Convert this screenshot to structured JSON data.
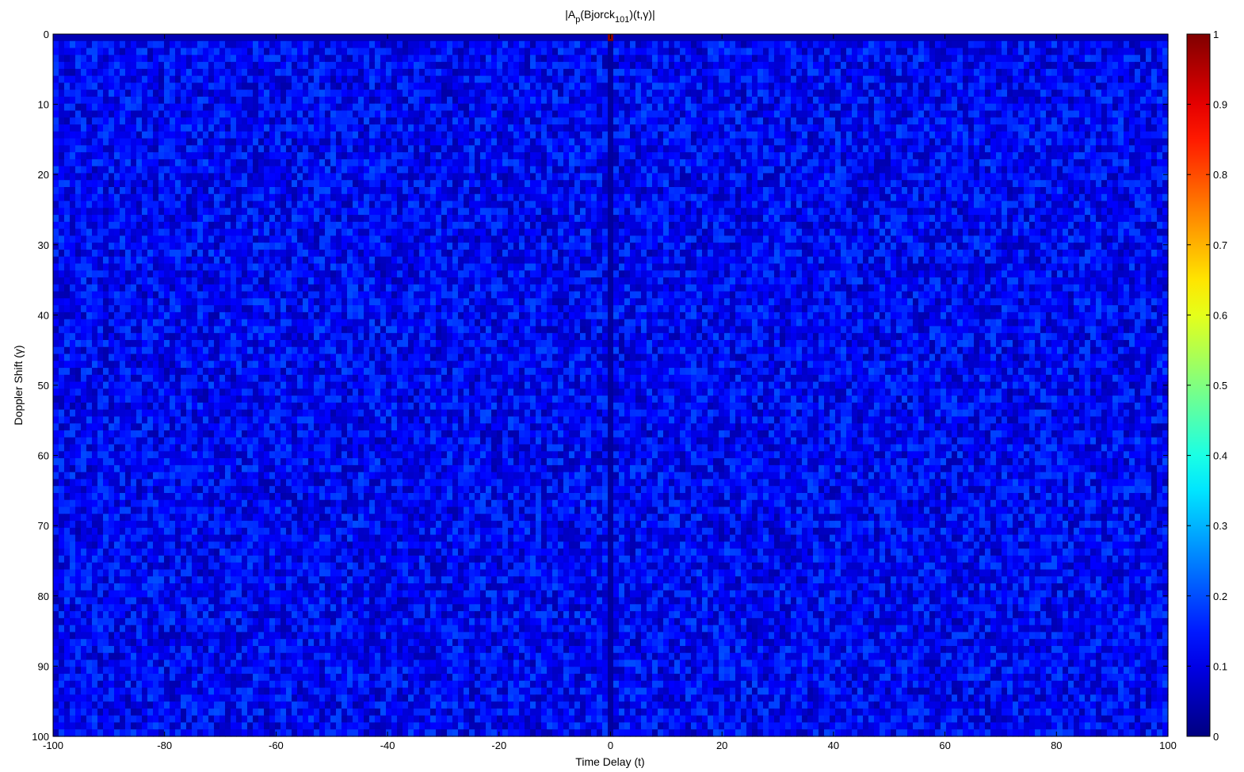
{
  "chart_data": {
    "type": "heatmap",
    "title": {
      "prefix": "|A",
      "sub1": "p",
      "mid": "(Bjorck",
      "sub2": "101",
      "suffix": ")(t,γ)|"
    },
    "xlabel": "Time Delay (t)",
    "ylabel": "Doppler Shift (γ)",
    "xlim": [
      -100,
      100
    ],
    "ylim": [
      0,
      100
    ],
    "y_reversed": true,
    "x_ticks": [
      -100,
      -80,
      -60,
      -40,
      -20,
      0,
      20,
      40,
      60,
      80,
      100
    ],
    "y_ticks": [
      0,
      10,
      20,
      30,
      40,
      50,
      60,
      70,
      80,
      90,
      100
    ],
    "colorbar": {
      "range": [
        0,
        1
      ],
      "ticks": [
        0,
        0.1,
        0.2,
        0.3,
        0.4,
        0.5,
        0.6,
        0.7,
        0.8,
        0.9,
        1
      ],
      "colormap": "jet"
    },
    "grid": {
      "t_range": [
        -100,
        100
      ],
      "gamma_range": [
        0,
        100
      ],
      "background_mean": 0.12,
      "background_spread": 0.08,
      "zero_delay_column_value": 0.03,
      "zero_doppler_row_value": 0.05,
      "peak": {
        "t": 0,
        "gamma": 0,
        "value": 1.0
      }
    }
  }
}
